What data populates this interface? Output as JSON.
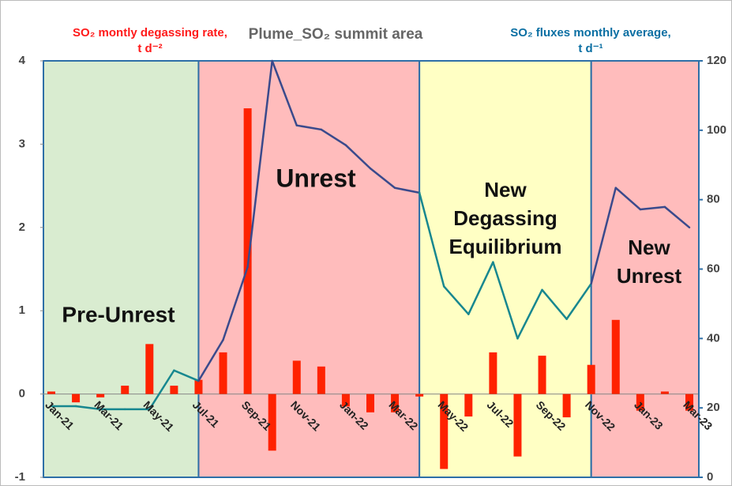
{
  "chart_data": {
    "type": "bar-line",
    "title": "Plume_SO₂  summit area",
    "y_label": [
      "SO₂  montly degassing rate,",
      "t d⁻²"
    ],
    "y2_label": [
      "SO₂  fluxes monthly average,",
      "t d⁻¹"
    ],
    "categories": [
      "Jan-21",
      null,
      "Mar-21",
      null,
      "May-21",
      null,
      "Jul-21",
      null,
      "Sep-21",
      null,
      "Nov-21",
      null,
      "Jan-22",
      null,
      "Mar-22",
      null,
      "May-22",
      null,
      "Jul-22",
      null,
      "Sep-22",
      null,
      "Nov-22",
      null,
      "Jan-23",
      null,
      "Mar-23"
    ],
    "series": [
      {
        "type": "bar",
        "color": "#ff2200",
        "values": [
          0.03,
          -0.1,
          -0.04,
          0.1,
          0.6,
          0.1,
          0.17,
          0.5,
          3.43,
          -0.68,
          0.4,
          0.33,
          -0.15,
          -0.22,
          -0.22,
          -0.03,
          -0.9,
          -0.27,
          0.5,
          -0.75,
          0.46,
          -0.28,
          0.35,
          0.89,
          -0.2,
          0.03,
          -0.2
        ]
      },
      {
        "type": "line",
        "axis": "y2",
        "color": "#17878f",
        "values": [
          20.5,
          20.5,
          19.6,
          19.6,
          19.6,
          30.8,
          27.8,
          39.6,
          60.6,
          120,
          101.4,
          100.2,
          95.7,
          89,
          83.4,
          82,
          55,
          47,
          62,
          40,
          54,
          45.6,
          55.8,
          83.4,
          77.2,
          77.9,
          72
        ]
      }
    ],
    "regions": [
      {
        "label": [
          "Pre-Unrest"
        ],
        "from": 0,
        "to": 6,
        "color": "#d9ecd0"
      },
      {
        "label": [
          "Unrest"
        ],
        "from": 6,
        "to": 15,
        "color": "#ffbcbc",
        "line_color": "#3a4a8c"
      },
      {
        "label": [
          "New",
          "Degassing",
          "Equilibrium"
        ],
        "from": 15,
        "to": 22,
        "color": "#ffffc4"
      },
      {
        "label": [
          "New",
          "Unrest"
        ],
        "from": 22,
        "to": 26,
        "color": "#ffbcbc",
        "line_color": "#3a4a8c"
      }
    ],
    "ylim": [
      -1,
      4
    ],
    "yticks": [
      -1,
      0,
      1,
      2,
      3,
      4
    ],
    "y2lim": [
      0,
      120
    ],
    "y2ticks": [
      0,
      20,
      40,
      60,
      80,
      100,
      120
    ]
  }
}
